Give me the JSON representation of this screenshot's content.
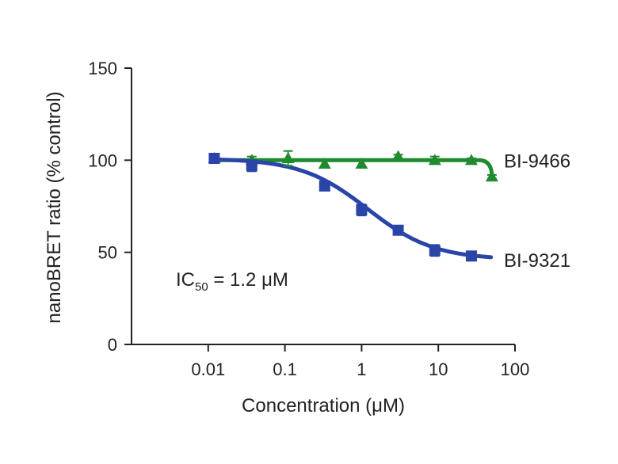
{
  "chart_data": {
    "type": "scatter",
    "xscale": "log",
    "xlim": [
      0.001,
      100
    ],
    "ylim": [
      0,
      150
    ],
    "xlabel": "Concentration (μM)",
    "ylabel": "nanoBRET ratio (% control)",
    "xticks": [
      {
        "value": 0.01,
        "label": "0.01"
      },
      {
        "value": 0.1,
        "label": "0.1"
      },
      {
        "value": 1,
        "label": "1"
      },
      {
        "value": 10,
        "label": "10"
      },
      {
        "value": 100,
        "label": "100"
      }
    ],
    "yticks": [
      {
        "value": 0,
        "label": "0"
      },
      {
        "value": 50,
        "label": "50"
      },
      {
        "value": 100,
        "label": "100"
      },
      {
        "value": 150,
        "label": "150"
      }
    ],
    "grid": false,
    "annotation": {
      "main": "IC",
      "sub": "50",
      "rest": " = 1.2 μM"
    },
    "series": [
      {
        "name": "BI-9466",
        "color": "#1f8a2e",
        "marker": "triangle",
        "points": [
          {
            "x": 0.012,
            "y": 101,
            "err": 2
          },
          {
            "x": 0.037,
            "y": 100,
            "err": 2
          },
          {
            "x": 0.11,
            "y": 101,
            "err": 4
          },
          {
            "x": 0.33,
            "y": 98,
            "err": 2
          },
          {
            "x": 1.0,
            "y": 98,
            "err": 2
          },
          {
            "x": 3.0,
            "y": 102,
            "err": 1
          },
          {
            "x": 9.0,
            "y": 100,
            "err": 2
          },
          {
            "x": 27,
            "y": 100,
            "err": 1
          },
          {
            "x": 50,
            "y": 91,
            "err": 1
          }
        ]
      },
      {
        "name": "BI-9321",
        "color": "#2a44a8",
        "marker": "square",
        "ic50": 1.2,
        "top": 101,
        "bottom": 46,
        "hill": 1.0,
        "points": [
          {
            "x": 0.012,
            "y": 101,
            "err": 2
          },
          {
            "x": 0.037,
            "y": 97,
            "err": 3
          },
          {
            "x": 0.33,
            "y": 86,
            "err": 2
          },
          {
            "x": 1.0,
            "y": 73,
            "err": 3
          },
          {
            "x": 3.0,
            "y": 62,
            "err": 2
          },
          {
            "x": 9.0,
            "y": 51,
            "err": 3
          },
          {
            "x": 27,
            "y": 48,
            "err": 2
          }
        ]
      }
    ]
  }
}
